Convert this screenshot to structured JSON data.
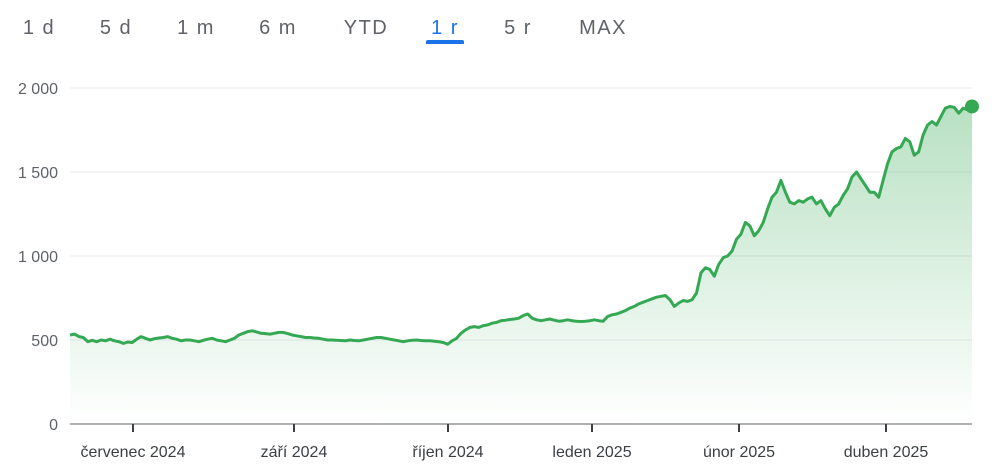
{
  "tabs": [
    {
      "label": "1 d",
      "active": false
    },
    {
      "label": "5 d",
      "active": false
    },
    {
      "label": "1 m",
      "active": false
    },
    {
      "label": "6 m",
      "active": false
    },
    {
      "label": "YTD",
      "active": false
    },
    {
      "label": "1 r",
      "active": true
    },
    {
      "label": "5 r",
      "active": false
    },
    {
      "label": "MAX",
      "active": false
    }
  ],
  "colors": {
    "line": "#34a853",
    "accent": "#1a73e8",
    "grid": "#e8eaed"
  },
  "chart_data": {
    "type": "area",
    "ylim": [
      0,
      2000
    ],
    "y_ticks": [
      0,
      500,
      1000,
      1500,
      2000
    ],
    "y_tick_labels": [
      "0",
      "500",
      "1 000",
      "1 500",
      "2 000"
    ],
    "x_tick_labels": [
      "červenec 2024",
      "září 2024",
      "říjen 2024",
      "leden 2025",
      "únor 2025",
      "duben 2025"
    ],
    "series": [
      {
        "values": [
          530,
          535,
          520,
          515,
          490,
          498,
          490,
          500,
          495,
          505,
          495,
          490,
          480,
          488,
          485,
          505,
          520,
          510,
          500,
          508,
          512,
          515,
          520,
          510,
          505,
          495,
          500,
          500,
          495,
          490,
          498,
          505,
          510,
          500,
          495,
          490,
          500,
          510,
          530,
          540,
          550,
          555,
          548,
          540,
          538,
          535,
          540,
          545,
          545,
          538,
          530,
          525,
          520,
          515,
          515,
          512,
          510,
          505,
          500,
          500,
          498,
          497,
          495,
          500,
          497,
          495,
          500,
          505,
          510,
          515,
          515,
          510,
          505,
          500,
          495,
          490,
          495,
          498,
          500,
          497,
          495,
          495,
          492,
          490,
          485,
          475,
          495,
          510,
          540,
          560,
          575,
          580,
          575,
          585,
          590,
          600,
          605,
          615,
          618,
          622,
          625,
          630,
          645,
          655,
          630,
          620,
          615,
          620,
          625,
          618,
          612,
          615,
          620,
          615,
          612,
          610,
          612,
          615,
          620,
          615,
          612,
          640,
          650,
          655,
          665,
          675,
          690,
          700,
          715,
          725,
          735,
          745,
          755,
          760,
          765,
          740,
          700,
          720,
          735,
          730,
          740,
          780,
          900,
          930,
          920,
          880,
          950,
          990,
          1000,
          1030,
          1100,
          1130,
          1200,
          1180,
          1120,
          1150,
          1200,
          1280,
          1350,
          1380,
          1450,
          1380,
          1320,
          1310,
          1330,
          1320,
          1340,
          1350,
          1310,
          1330,
          1280,
          1240,
          1290,
          1310,
          1360,
          1400,
          1470,
          1500,
          1460,
          1420,
          1380,
          1380,
          1350,
          1450,
          1550,
          1620,
          1640,
          1650,
          1700,
          1680,
          1600,
          1620,
          1720,
          1780,
          1800,
          1780,
          1830,
          1880,
          1890,
          1885,
          1850,
          1880,
          1870,
          1890
        ]
      }
    ]
  }
}
